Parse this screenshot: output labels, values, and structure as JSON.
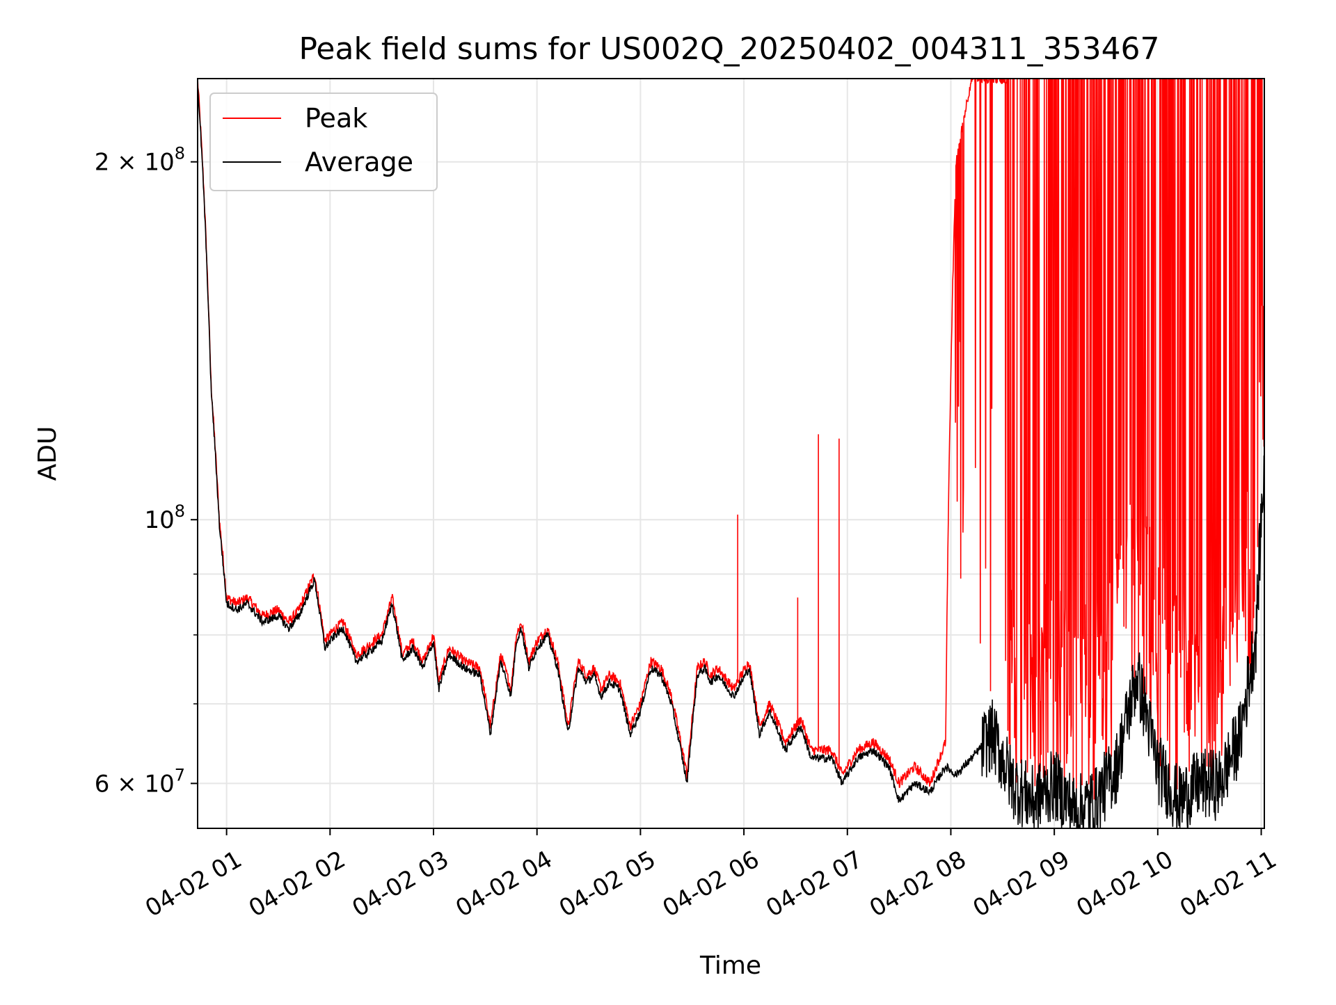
{
  "chart_data": {
    "type": "line",
    "title": "Peak field sums for US002Q_20250402_004311_353467",
    "xlabel": "Time",
    "ylabel": "ADU",
    "x_ticks": [
      "04-02 01",
      "04-02 02",
      "04-02 03",
      "04-02 04",
      "04-02 05",
      "04-02 06",
      "04-02 07",
      "04-02 08",
      "04-02 09",
      "04-02 10",
      "04-02 11"
    ],
    "y_scale": "log",
    "y_ticks": [
      {
        "value": 60000000,
        "mant": "6",
        "exp": "7"
      },
      {
        "value": 100000000,
        "mant": "",
        "exp": "8"
      },
      {
        "value": 200000000,
        "mant": "2",
        "exp": "8"
      }
    ],
    "y_minor_ticks": [
      70000000,
      80000000,
      90000000
    ],
    "xlim_hours": [
      0.72,
      11.03
    ],
    "ylim": [
      55000000,
      235000000
    ],
    "grid": true,
    "legend_position": "top-left",
    "colors": {
      "peak": "#ff0000",
      "average": "#000000",
      "grid": "#e6e6e6"
    },
    "series": [
      {
        "name": "Peak",
        "x_hours": [
          0.72,
          0.78,
          0.85,
          0.93,
          1.0,
          1.1,
          1.2,
          1.35,
          1.5,
          1.6,
          1.7,
          1.85,
          1.95,
          2.05,
          2.13,
          2.25,
          2.35,
          2.42,
          2.5,
          2.6,
          2.7,
          2.8,
          2.9,
          3.0,
          3.05,
          3.15,
          3.3,
          3.45,
          3.55,
          3.65,
          3.75,
          3.8,
          3.85,
          3.92,
          4.0,
          4.1,
          4.2,
          4.3,
          4.4,
          4.48,
          4.55,
          4.62,
          4.7,
          4.8,
          4.9,
          5.0,
          5.1,
          5.2,
          5.3,
          5.45,
          5.55,
          5.62,
          5.68,
          5.75,
          5.9,
          6.05,
          6.15,
          6.25,
          6.4,
          6.55,
          6.65,
          6.75,
          6.85,
          6.95,
          7.1,
          7.25,
          7.4,
          7.5,
          7.65,
          7.8,
          7.95,
          8.05,
          8.2,
          8.4,
          8.6,
          8.8,
          9.0,
          9.2,
          9.4,
          9.6,
          9.8,
          10.0,
          10.2,
          10.4,
          10.6,
          10.8,
          10.95,
          11.03
        ],
        "y_millions": [
          235,
          190,
          130,
          100,
          86,
          85,
          86,
          83,
          84,
          82,
          84,
          90,
          79,
          81,
          82,
          77,
          78,
          79,
          80,
          86,
          77,
          79,
          76,
          80,
          73,
          78,
          76,
          75,
          67,
          77,
          72,
          80,
          82,
          76,
          79,
          81,
          76,
          67,
          76,
          74,
          75,
          72,
          74,
          73,
          67,
          70,
          76,
          75,
          71,
          61,
          75,
          76,
          74,
          75,
          72,
          76,
          67,
          70,
          65,
          68,
          64,
          64,
          64,
          61,
          64,
          65,
          63,
          60,
          62,
          60,
          65,
          200,
          235,
          235,
          235,
          235,
          235,
          235,
          235,
          235,
          235,
          235,
          235,
          235,
          235,
          235,
          235,
          235
        ],
        "notes_spikes_millions": [
          {
            "x_hours": 5.94,
            "y": 101
          },
          {
            "x_hours": 6.72,
            "y": 118
          },
          {
            "x_hours": 6.92,
            "y": 117
          },
          {
            "x_hours": 6.52,
            "y": 86
          }
        ]
      },
      {
        "name": "Average",
        "x_hours": [
          0.72,
          0.78,
          0.85,
          0.93,
          1.0,
          1.1,
          1.2,
          1.35,
          1.5,
          1.6,
          1.7,
          1.85,
          1.95,
          2.05,
          2.13,
          2.25,
          2.35,
          2.42,
          2.5,
          2.6,
          2.7,
          2.8,
          2.9,
          3.0,
          3.05,
          3.15,
          3.3,
          3.45,
          3.55,
          3.65,
          3.75,
          3.8,
          3.85,
          3.92,
          4.0,
          4.1,
          4.2,
          4.3,
          4.4,
          4.48,
          4.55,
          4.62,
          4.7,
          4.8,
          4.9,
          5.0,
          5.1,
          5.2,
          5.3,
          5.45,
          5.55,
          5.62,
          5.68,
          5.75,
          5.9,
          6.05,
          6.15,
          6.25,
          6.4,
          6.55,
          6.65,
          6.75,
          6.85,
          6.95,
          7.1,
          7.25,
          7.4,
          7.5,
          7.65,
          7.8,
          7.95,
          8.05,
          8.2,
          8.4,
          8.6,
          8.8,
          9.0,
          9.2,
          9.4,
          9.6,
          9.8,
          10.0,
          10.2,
          10.4,
          10.6,
          10.8,
          10.95,
          11.03
        ],
        "y_millions": [
          233,
          188,
          129,
          99,
          85,
          84,
          85,
          82,
          83,
          81,
          83,
          89,
          78,
          80,
          81,
          76,
          77,
          78,
          79,
          85,
          76,
          78,
          75,
          79,
          72,
          77,
          75,
          74,
          66,
          76,
          71,
          79,
          81,
          75,
          78,
          80,
          75,
          66,
          75,
          73,
          74,
          71,
          73,
          72,
          66,
          69,
          75,
          74,
          70,
          60,
          74,
          75,
          73,
          74,
          71,
          75,
          66,
          69,
          64,
          67,
          63,
          63,
          63,
          60,
          63,
          64,
          62,
          58,
          60,
          59,
          62,
          61,
          63,
          66,
          60,
          58,
          60,
          57,
          58,
          62,
          74,
          62,
          58,
          60,
          60,
          66,
          80,
          112
        ]
      }
    ]
  }
}
